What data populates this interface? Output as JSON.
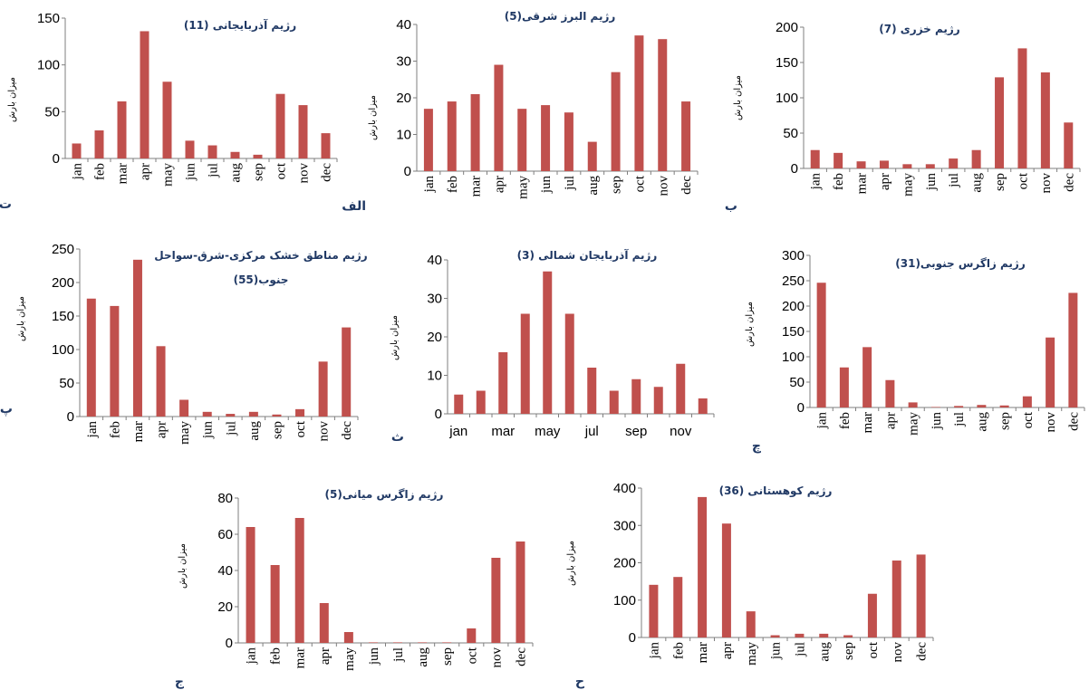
{
  "chart_data": [
    {
      "type": "bar",
      "title": "رژیم آذربایجانی (11)",
      "ylabel": "میزان بارش",
      "letter": "ت",
      "ylim": [
        0,
        150
      ],
      "yticks": [
        "0",
        "50",
        "100",
        "150"
      ],
      "categories": [
        "jan",
        "feb",
        "mar",
        "apr",
        "may",
        "jun",
        "jul",
        "aug",
        "sep",
        "oct",
        "nov",
        "dec"
      ],
      "x_tick_labels": [
        "jan",
        "feb",
        "mar",
        "apr",
        "may",
        "jun",
        "jul",
        "aug",
        "sep",
        "oct",
        "nov",
        "dec"
      ],
      "values": [
        16,
        30,
        61,
        136,
        82,
        19,
        14,
        7,
        4,
        69,
        57,
        27
      ],
      "color": "#c0504d"
    },
    {
      "type": "bar",
      "title": "رژیم البرز شرقی(5)",
      "ylabel": "میزان بارش",
      "letter": "الف",
      "ylim": [
        0,
        40
      ],
      "yticks": [
        "0",
        "10",
        "20",
        "30",
        "40"
      ],
      "categories": [
        "jan",
        "feb",
        "mar",
        "apr",
        "may",
        "jun",
        "jul",
        "aug",
        "sep",
        "oct",
        "nov",
        "dec"
      ],
      "x_tick_labels": [
        "jan",
        "feb",
        "mar",
        "apr",
        "may",
        "jun",
        "jul",
        "aug",
        "sep",
        "oct",
        "nov",
        "dec"
      ],
      "values": [
        17,
        19,
        21,
        29,
        17,
        18,
        16,
        8,
        27,
        37,
        36,
        19
      ],
      "color": "#c0504d"
    },
    {
      "type": "bar",
      "title": "رژیم خزری (7)",
      "ylabel": "میزان بارش",
      "letter": "ب",
      "ylim": [
        0,
        200
      ],
      "yticks": [
        "0",
        "50",
        "100",
        "150",
        "200"
      ],
      "categories": [
        "jan",
        "feb",
        "mar",
        "apr",
        "may",
        "jun",
        "jul",
        "aug",
        "sep",
        "oct",
        "nov",
        "dec"
      ],
      "x_tick_labels": [
        "jan",
        "feb",
        "mar",
        "apr",
        "may",
        "jun",
        "jul",
        "aug",
        "sep",
        "oct",
        "nov",
        "dec"
      ],
      "values": [
        26,
        22,
        10,
        11,
        6,
        6,
        14,
        26,
        129,
        170,
        136,
        65
      ],
      "color": "#c0504d"
    },
    {
      "type": "bar",
      "title": "رژیم مناطق خشک مرکزی-شرق-سواحل جنوب(55)",
      "title_lines": [
        "رژیم مناطق خشک مرکزی-شرق-سواحل",
        "جنوب(55)"
      ],
      "ylabel": "میزان بارش",
      "letter": "پ",
      "ylim": [
        0,
        250
      ],
      "yticks": [
        "0",
        "50",
        "100",
        "150",
        "200",
        "250"
      ],
      "categories": [
        "jan",
        "feb",
        "mar",
        "apr",
        "may",
        "jun",
        "jul",
        "aug",
        "sep",
        "oct",
        "nov",
        "dec"
      ],
      "x_tick_labels": [
        "jan",
        "feb",
        "mar",
        "apr",
        "may",
        "jun",
        "jul",
        "aug",
        "sep",
        "oct",
        "nov",
        "dec"
      ],
      "values": [
        176,
        165,
        234,
        105,
        25,
        7,
        4,
        7,
        3,
        11,
        82,
        133
      ],
      "color": "#c0504d"
    },
    {
      "type": "bar",
      "title": "رژیم آذربایجان شمالی (3)",
      "ylabel": "میزان بارش",
      "letter": "ث",
      "ylim": [
        0,
        40
      ],
      "yticks": [
        "0",
        "10",
        "20",
        "30",
        "40"
      ],
      "categories": [
        "jan",
        "feb",
        "mar",
        "apr",
        "may",
        "jun",
        "jul",
        "aug",
        "sep",
        "oct",
        "nov",
        "dec"
      ],
      "x_tick_labels": [
        "jan",
        "",
        "mar",
        "",
        "may",
        "",
        "jul",
        "",
        "sep",
        "",
        "nov",
        ""
      ],
      "values": [
        5,
        6,
        16,
        26,
        37,
        26,
        12,
        6,
        9,
        7,
        13,
        4
      ],
      "color": "#c0504d"
    },
    {
      "type": "bar",
      "title": "رژیم زاگرس جنوبی(31)",
      "ylabel": "میزان بارش",
      "letter": "چ",
      "ylim": [
        0,
        300
      ],
      "yticks": [
        "0",
        "50",
        "100",
        "150",
        "200",
        "250",
        "300"
      ],
      "categories": [
        "jan",
        "feb",
        "mar",
        "apr",
        "may",
        "jun",
        "jul",
        "aug",
        "sep",
        "oct",
        "nov",
        "dec"
      ],
      "x_tick_labels": [
        "jan",
        "feb",
        "mar",
        "apr",
        "may",
        "jun",
        "jul",
        "aug",
        "sep",
        "oct",
        "nov",
        "dec"
      ],
      "values": [
        246,
        79,
        119,
        54,
        10,
        1,
        3,
        5,
        4,
        22,
        138,
        226
      ],
      "color": "#c0504d"
    },
    {
      "type": "bar",
      "title": "رژیم  زاگرس میانی(5)",
      "ylabel": "میزان بارش",
      "letter": "ج",
      "ylim": [
        0,
        80
      ],
      "yticks": [
        "0",
        "20",
        "40",
        "60",
        "80"
      ],
      "categories": [
        "jan",
        "feb",
        "mar",
        "apr",
        "may",
        "jun",
        "jul",
        "aug",
        "sep",
        "oct",
        "nov",
        "dec"
      ],
      "x_tick_labels": [
        "jan",
        "feb",
        "mar",
        "apr",
        "may",
        "jun",
        "jul",
        "aug",
        "sep",
        "oct",
        "nov",
        "dec"
      ],
      "values": [
        64,
        43,
        69,
        22,
        6,
        0.3,
        0.3,
        0.3,
        0.3,
        8,
        47,
        56
      ],
      "color": "#c0504d"
    },
    {
      "type": "bar",
      "title": "رژیم کوهستانی (36)",
      "ylabel": "میزان بارش",
      "letter": "ح",
      "ylim": [
        0,
        400
      ],
      "yticks": [
        "0",
        "100",
        "200",
        "300",
        "400"
      ],
      "categories": [
        "jan",
        "feb",
        "mar",
        "apr",
        "may",
        "jun",
        "jul",
        "aug",
        "sep",
        "oct",
        "nov",
        "dec"
      ],
      "x_tick_labels": [
        "jan",
        "feb",
        "mar",
        "apr",
        "may",
        "jun",
        "jul",
        "aug",
        "sep",
        "oct",
        "nov",
        "dec"
      ],
      "values": [
        141,
        162,
        376,
        305,
        70,
        6,
        10,
        10,
        6,
        117,
        206,
        222
      ],
      "color": "#c0504d"
    }
  ]
}
